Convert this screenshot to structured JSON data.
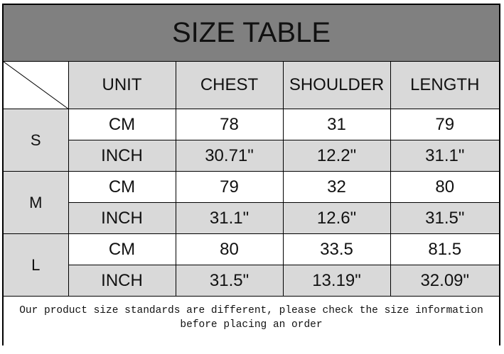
{
  "title": "SIZE TABLE",
  "headers": [
    "UNIT",
    "CHEST",
    "SHOULDER",
    "LENGTH"
  ],
  "sizes": [
    {
      "label": "S",
      "cm": {
        "unit": "CM",
        "chest": "78",
        "shoulder": "31",
        "length": "79"
      },
      "inch": {
        "unit": "INCH",
        "chest": "30.71\"",
        "shoulder": "12.2\"",
        "length": "31.1\""
      }
    },
    {
      "label": "M",
      "cm": {
        "unit": "CM",
        "chest": "79",
        "shoulder": "32",
        "length": "80"
      },
      "inch": {
        "unit": "INCH",
        "chest": "31.1\"",
        "shoulder": "12.6\"",
        "length": "31.5\""
      }
    },
    {
      "label": "L",
      "cm": {
        "unit": "CM",
        "chest": "80",
        "shoulder": "33.5",
        "length": "81.5"
      },
      "inch": {
        "unit": "INCH",
        "chest": "31.5\"",
        "shoulder": "13.19\"",
        "length": "32.09\""
      }
    }
  ],
  "footer_note": "Our product size standards are different, please check the size information before placing an order",
  "colors": {
    "title_bg": "#808080",
    "header_bg": "#d9d9d9",
    "inch_row_bg": "#d9d9d9"
  }
}
